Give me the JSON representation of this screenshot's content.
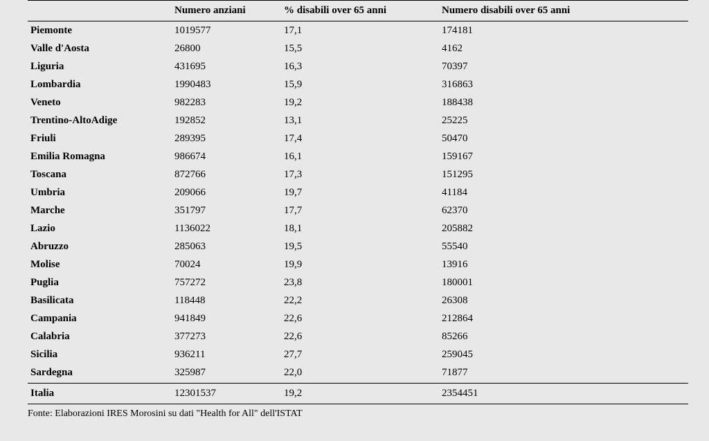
{
  "table": {
    "columns": [
      {
        "key": "region",
        "label": ""
      },
      {
        "key": "elderly",
        "label": "Numero anziani"
      },
      {
        "key": "pct",
        "label": "% disabili over 65 anni"
      },
      {
        "key": "disabled",
        "label": "Numero disabili over 65 anni"
      }
    ],
    "rows": [
      {
        "region": "Piemonte",
        "elderly": "1019577",
        "pct": "17,1",
        "disabled": "174181"
      },
      {
        "region": "Valle d'Aosta",
        "elderly": "26800",
        "pct": "15,5",
        "disabled": "4162"
      },
      {
        "region": "Liguria",
        "elderly": "431695",
        "pct": "16,3",
        "disabled": "70397"
      },
      {
        "region": "Lombardia",
        "elderly": "1990483",
        "pct": "15,9",
        "disabled": "316863"
      },
      {
        "region": "Veneto",
        "elderly": "982283",
        "pct": "19,2",
        "disabled": "188438"
      },
      {
        "region": "Trentino-AltoAdige",
        "elderly": "192852",
        "pct": "13,1",
        "disabled": "25225"
      },
      {
        "region": "Friuli",
        "elderly": "289395",
        "pct": "17,4",
        "disabled": "50470"
      },
      {
        "region": "Emilia Romagna",
        "elderly": "986674",
        "pct": "16,1",
        "disabled": "159167"
      },
      {
        "region": "Toscana",
        "elderly": "872766",
        "pct": "17,3",
        "disabled": "151295"
      },
      {
        "region": "Umbria",
        "elderly": "209066",
        "pct": "19,7",
        "disabled": "41184"
      },
      {
        "region": "Marche",
        "elderly": "351797",
        "pct": "17,7",
        "disabled": "62370"
      },
      {
        "region": "Lazio",
        "elderly": "1136022",
        "pct": "18,1",
        "disabled": "205882"
      },
      {
        "region": "Abruzzo",
        "elderly": "285063",
        "pct": "19,5",
        "disabled": "55540"
      },
      {
        "region": "Molise",
        "elderly": "70024",
        "pct": "19,9",
        "disabled": "13916"
      },
      {
        "region": "Puglia",
        "elderly": "757272",
        "pct": "23,8",
        "disabled": "180001"
      },
      {
        "region": "Basilicata",
        "elderly": "118448",
        "pct": "22,2",
        "disabled": "26308"
      },
      {
        "region": "Campania",
        "elderly": "941849",
        "pct": "22,6",
        "disabled": "212864"
      },
      {
        "region": "Calabria",
        "elderly": "377273",
        "pct": "22,6",
        "disabled": "85266"
      },
      {
        "region": "Sicilia",
        "elderly": "936211",
        "pct": "27,7",
        "disabled": "259045"
      },
      {
        "region": "Sardegna",
        "elderly": "325987",
        "pct": "22,0",
        "disabled": "71877"
      }
    ],
    "total": {
      "region": "Italia",
      "elderly": "12301537",
      "pct": "19,2",
      "disabled": "2354451"
    },
    "background_color": "#e8e8e8",
    "border_color": "#000000",
    "text_color": "#000000",
    "fontsize": 15
  },
  "source": "Fonte: Elaborazioni IRES Morosini su dati \"Health for All\" dell'ISTAT"
}
